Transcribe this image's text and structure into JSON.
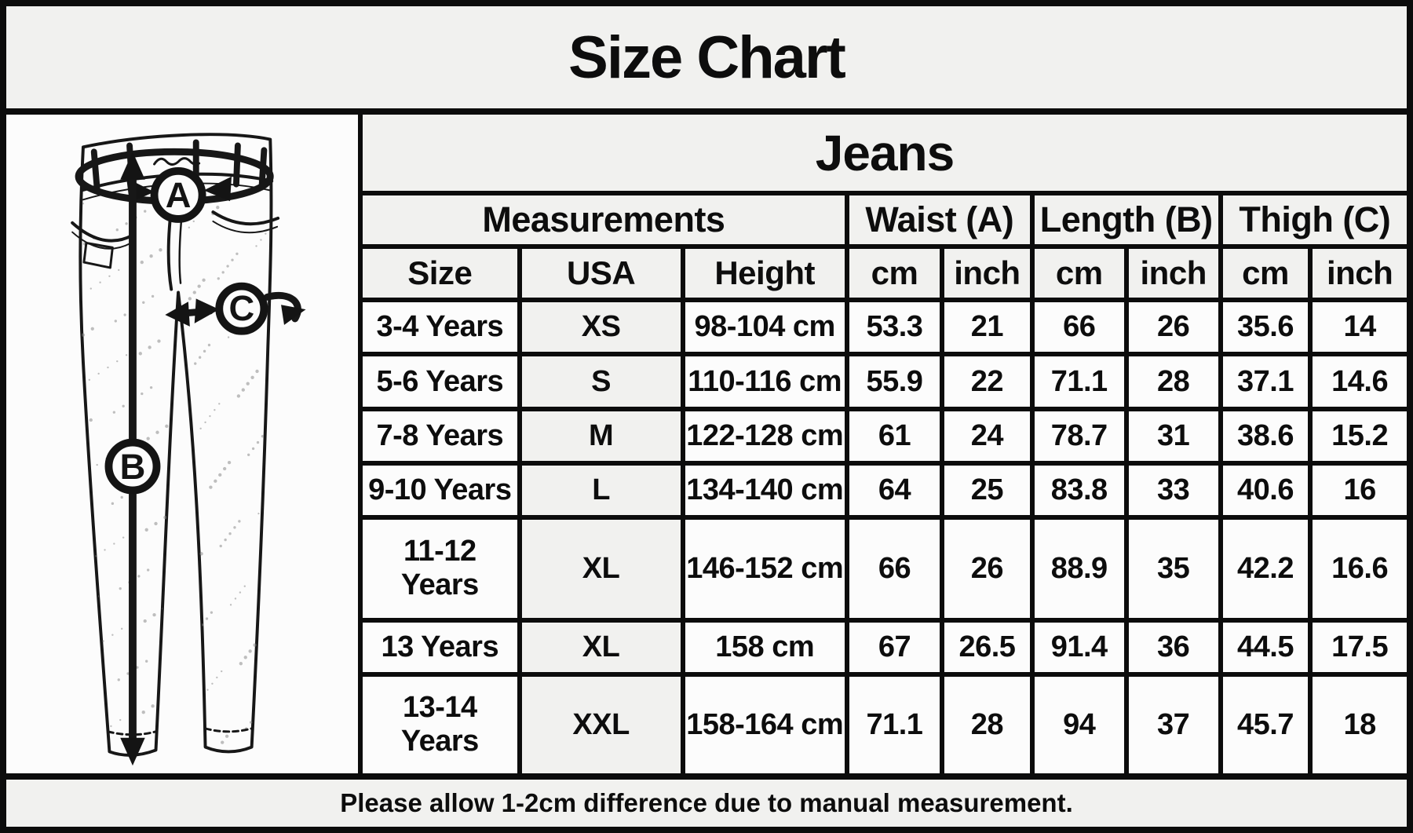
{
  "title": "Size Chart",
  "product": "Jeans",
  "diagram": {
    "label_a": "A",
    "label_b": "B",
    "label_c": "C"
  },
  "table": {
    "group_headers": [
      {
        "label": "Measurements",
        "span": 3
      },
      {
        "label": "Waist (A)",
        "span": 2
      },
      {
        "label": "Length (B)",
        "span": 2
      },
      {
        "label": "Thigh (C)",
        "span": 2
      }
    ],
    "column_headers": [
      "Size",
      "USA",
      "Height",
      "cm",
      "inch",
      "cm",
      "inch",
      "cm",
      "inch"
    ],
    "rows": [
      [
        "3-4 Years",
        "XS",
        "98-104 cm",
        "53.3",
        "21",
        "66",
        "26",
        "35.6",
        "14"
      ],
      [
        "5-6 Years",
        "S",
        "110-116 cm",
        "55.9",
        "22",
        "71.1",
        "28",
        "37.1",
        "14.6"
      ],
      [
        "7-8 Years",
        "M",
        "122-128 cm",
        "61",
        "24",
        "78.7",
        "31",
        "38.6",
        "15.2"
      ],
      [
        "9-10 Years",
        "L",
        "134-140 cm",
        "64",
        "25",
        "83.8",
        "33",
        "40.6",
        "16"
      ],
      [
        "11-12 Years",
        "XL",
        "146-152 cm",
        "66",
        "26",
        "88.9",
        "35",
        "42.2",
        "16.6"
      ],
      [
        "13 Years",
        "XL",
        "158 cm",
        "67",
        "26.5",
        "91.4",
        "36",
        "44.5",
        "17.5"
      ],
      [
        "13-14 Years",
        "XXL",
        "158-164 cm",
        "71.1",
        "28",
        "94",
        "37",
        "45.7",
        "18"
      ]
    ]
  },
  "footer": {
    "note": "Please allow 1-2cm difference due to manual measurement."
  },
  "colors": {
    "background": "#f1f1ef",
    "cell_white": "#fcfcfc",
    "border": "#0c0c0c",
    "usa_column_shade": "#f1f1ef"
  }
}
